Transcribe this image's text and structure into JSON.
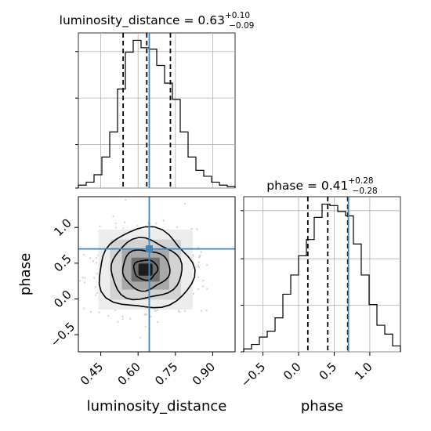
{
  "chart_data": {
    "type": "corner",
    "parameters": [
      "luminosity_distance",
      "phase"
    ],
    "truths": {
      "luminosity_distance": 0.645,
      "phase": 0.7
    },
    "panels": [
      {
        "id": "luminosity_distance",
        "type": "histogram-step",
        "title": {
          "name": "luminosity_distance",
          "median": "0.63",
          "plus": "+0.10",
          "minus": "−0.09"
        },
        "quantiles": [
          0.54,
          0.635,
          0.73
        ],
        "xlim": [
          0.36,
          0.99
        ],
        "bin_edges": [
          0.36,
          0.3915,
          0.423,
          0.4545,
          0.486,
          0.5175,
          0.549,
          0.5805,
          0.612,
          0.6435,
          0.675,
          0.7065,
          0.738,
          0.7695,
          0.801,
          0.8325,
          0.864,
          0.8955,
          0.927,
          0.9585,
          0.99
        ],
        "counts": [
          2,
          4,
          9,
          21,
          38,
          67,
          92,
          100,
          95,
          94,
          83,
          71,
          60,
          38,
          21,
          12,
          8,
          4,
          2,
          1
        ],
        "ylabel": "",
        "xlabel": "",
        "xticks": []
      },
      {
        "id": "phase",
        "type": "histogram-step",
        "title": {
          "name": "phase",
          "median": "0.41",
          "plus": "+0.28",
          "minus": "−0.28"
        },
        "quantiles": [
          0.13,
          0.41,
          0.69
        ],
        "xlim": [
          -0.77,
          1.43
        ],
        "bin_edges": [
          -0.77,
          -0.66,
          -0.55,
          -0.44,
          -0.33,
          -0.22,
          -0.11,
          0.0,
          0.11,
          0.22,
          0.33,
          0.44,
          0.55,
          0.66,
          0.77,
          0.88,
          0.99,
          1.1,
          1.21,
          1.32,
          1.43
        ],
        "counts": [
          2,
          5,
          10,
          14,
          23,
          39,
          52,
          65,
          76,
          91,
          100,
          99,
          95,
          92,
          73,
          52,
          32,
          18,
          12,
          4
        ],
        "xlabel": "phase",
        "xticks": [
          {
            "value": -0.5,
            "label": "−0.5"
          },
          {
            "value": 0.0,
            "label": "0.0"
          },
          {
            "value": 0.5,
            "label": "0.5"
          },
          {
            "value": 1.0,
            "label": "1.0"
          }
        ]
      },
      {
        "id": "luminosity_distance-vs-phase",
        "type": "2d-density-contour",
        "xlim": [
          0.36,
          0.99
        ],
        "ylim": [
          -0.74,
          1.43
        ],
        "xlabel": "luminosity_distance",
        "ylabel": "phase",
        "xticks": [
          {
            "value": 0.45,
            "label": "0.45"
          },
          {
            "value": 0.6,
            "label": "0.60"
          },
          {
            "value": 0.75,
            "label": "0.75"
          },
          {
            "value": 0.9,
            "label": "0.90"
          }
        ],
        "yticks": [
          {
            "value": -0.5,
            "label": "−0.5"
          },
          {
            "value": 0.0,
            "label": "0.0"
          },
          {
            "value": 0.5,
            "label": "0.5"
          },
          {
            "value": 1.0,
            "label": "1.0"
          }
        ],
        "density_center": [
          0.63,
          0.41
        ],
        "density_spread": [
          0.095,
          0.28
        ],
        "contour_levels_sigma": [
          0.5,
          1.0,
          1.5,
          2.0
        ]
      }
    ],
    "grid": true,
    "colors": {
      "truth": "#4682b4",
      "hist": "#000000",
      "grid": "#b0b0b0"
    }
  }
}
